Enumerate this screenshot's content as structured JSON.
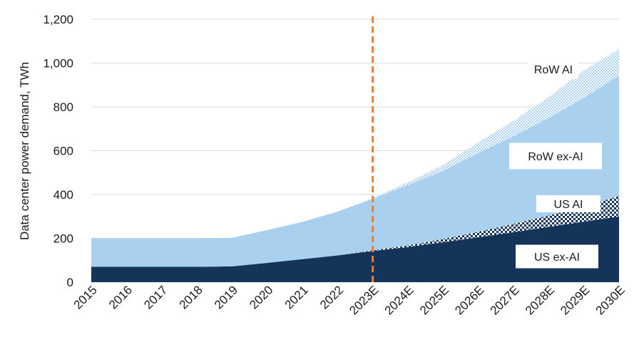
{
  "chart_data": {
    "type": "area",
    "title": "",
    "xlabel": "",
    "ylabel": "Data center power demand, TWh",
    "ylim": [
      0,
      1200
    ],
    "yticks": [
      "0",
      "200",
      "400",
      "600",
      "800",
      "1,000",
      "1,200"
    ],
    "categories": [
      "2015",
      "2016",
      "2017",
      "2018",
      "2019",
      "2020",
      "2021",
      "2022",
      "2023E",
      "2024E",
      "2025E",
      "2026E",
      "2027E",
      "2028E",
      "2029E",
      "2030E"
    ],
    "stacked": true,
    "forecast_marker": "2023E",
    "series": [
      {
        "name": "US ex-AI",
        "color": "#14345a",
        "pattern": "solid",
        "values": [
          70,
          70,
          70,
          70,
          72,
          88,
          105,
          122,
          142,
          160,
          182,
          205,
          228,
          252,
          276,
          300
        ]
      },
      {
        "name": "US AI",
        "color": "#14345a",
        "pattern": "checker",
        "values": [
          0,
          0,
          0,
          0,
          0,
          0,
          0,
          0,
          3,
          8,
          15,
          25,
          38,
          52,
          70,
          93
        ]
      },
      {
        "name": "RoW ex-AI",
        "color": "#a9d0ee",
        "pattern": "solid",
        "values": [
          130,
          130,
          130,
          130,
          130,
          150,
          170,
          200,
          235,
          275,
          310,
          360,
          400,
          445,
          495,
          550
        ]
      },
      {
        "name": "RoW AI",
        "color": "#a9d0ee",
        "pattern": "hatch",
        "values": [
          0,
          0,
          0,
          0,
          0,
          0,
          0,
          0,
          4,
          13,
          27,
          48,
          70,
          95,
          125,
          120
        ]
      }
    ],
    "label_order": [
      "RoW AI",
      "RoW ex-AI",
      "US AI",
      "US ex-AI"
    ],
    "grid": true
  }
}
